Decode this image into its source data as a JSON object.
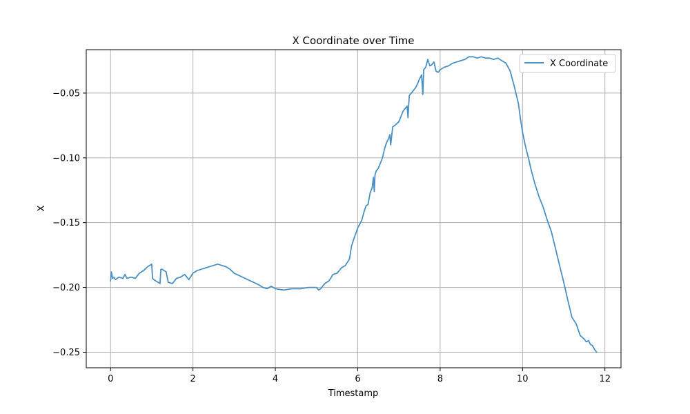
{
  "chart_data": {
    "type": "line",
    "title": "X Coordinate over Time",
    "xlabel": "Timestamp",
    "ylabel": "X",
    "xlim": [
      -0.59,
      12.39
    ],
    "ylim": [
      -0.262,
      -0.0165
    ],
    "xticks": [
      0,
      2,
      4,
      6,
      8,
      10,
      12
    ],
    "xtick_labels": [
      "0",
      "2",
      "4",
      "6",
      "8",
      "10",
      "12"
    ],
    "yticks": [
      -0.25,
      -0.2,
      -0.15,
      -0.1,
      -0.05
    ],
    "ytick_labels": [
      "−0.25",
      "−0.20",
      "−0.15",
      "−0.10",
      "−0.05"
    ],
    "grid": true,
    "legend_position": "top-right",
    "colors": {
      "series": "#4a90c2",
      "grid": "#b0b0b0",
      "axis": "#000000"
    },
    "series": [
      {
        "name": "X Coordinate",
        "x": [
          0.0,
          0.02,
          0.05,
          0.08,
          0.12,
          0.2,
          0.3,
          0.35,
          0.4,
          0.5,
          0.6,
          0.7,
          0.8,
          0.9,
          1.0,
          1.02,
          1.05,
          1.1,
          1.2,
          1.22,
          1.25,
          1.35,
          1.4,
          1.5,
          1.6,
          1.7,
          1.8,
          1.85,
          1.9,
          2.0,
          2.1,
          2.2,
          2.3,
          2.4,
          2.5,
          2.6,
          2.7,
          2.8,
          2.9,
          3.0,
          3.2,
          3.4,
          3.6,
          3.7,
          3.8,
          3.9,
          4.0,
          4.2,
          4.4,
          4.6,
          4.8,
          5.0,
          5.05,
          5.1,
          5.2,
          5.3,
          5.4,
          5.5,
          5.6,
          5.7,
          5.8,
          5.85,
          5.9,
          6.0,
          6.1,
          6.15,
          6.2,
          6.25,
          6.3,
          6.35,
          6.38,
          6.4,
          6.42,
          6.45,
          6.5,
          6.6,
          6.65,
          6.7,
          6.75,
          6.78,
          6.8,
          6.85,
          6.9,
          7.0,
          7.1,
          7.2,
          7.22,
          7.25,
          7.3,
          7.4,
          7.45,
          7.5,
          7.55,
          7.58,
          7.6,
          7.65,
          7.7,
          7.75,
          7.8,
          7.85,
          7.9,
          7.95,
          8.0,
          8.1,
          8.2,
          8.3,
          8.4,
          8.5,
          8.6,
          8.7,
          8.8,
          8.9,
          9.0,
          9.1,
          9.2,
          9.3,
          9.4,
          9.5,
          9.6,
          9.7,
          9.8,
          9.9,
          9.95,
          10.0,
          10.05,
          10.1,
          10.15,
          10.2,
          10.3,
          10.4,
          10.5,
          10.6,
          10.7,
          10.8,
          10.9,
          11.0,
          11.1,
          11.2,
          11.3,
          11.4,
          11.5,
          11.55,
          11.6,
          11.65,
          11.7,
          11.75,
          11.8
        ],
        "y": [
          -0.195,
          -0.188,
          -0.193,
          -0.192,
          -0.194,
          -0.192,
          -0.193,
          -0.19,
          -0.193,
          -0.192,
          -0.193,
          -0.189,
          -0.187,
          -0.184,
          -0.182,
          -0.193,
          -0.194,
          -0.195,
          -0.197,
          -0.186,
          -0.186,
          -0.188,
          -0.196,
          -0.197,
          -0.193,
          -0.192,
          -0.19,
          -0.192,
          -0.194,
          -0.189,
          -0.187,
          -0.186,
          -0.185,
          -0.184,
          -0.183,
          -0.182,
          -0.183,
          -0.184,
          -0.186,
          -0.189,
          -0.192,
          -0.195,
          -0.198,
          -0.2,
          -0.201,
          -0.199,
          -0.201,
          -0.202,
          -0.201,
          -0.201,
          -0.2,
          -0.2,
          -0.202,
          -0.201,
          -0.197,
          -0.195,
          -0.19,
          -0.189,
          -0.185,
          -0.183,
          -0.178,
          -0.168,
          -0.163,
          -0.154,
          -0.148,
          -0.142,
          -0.137,
          -0.136,
          -0.127,
          -0.123,
          -0.115,
          -0.126,
          -0.113,
          -0.11,
          -0.108,
          -0.1,
          -0.093,
          -0.088,
          -0.085,
          -0.082,
          -0.09,
          -0.076,
          -0.075,
          -0.072,
          -0.064,
          -0.06,
          -0.069,
          -0.052,
          -0.05,
          -0.046,
          -0.043,
          -0.039,
          -0.036,
          -0.051,
          -0.032,
          -0.03,
          -0.024,
          -0.029,
          -0.028,
          -0.026,
          -0.033,
          -0.034,
          -0.032,
          -0.03,
          -0.029,
          -0.027,
          -0.026,
          -0.025,
          -0.024,
          -0.022,
          -0.022,
          -0.023,
          -0.022,
          -0.023,
          -0.023,
          -0.024,
          -0.023,
          -0.025,
          -0.027,
          -0.033,
          -0.045,
          -0.058,
          -0.07,
          -0.08,
          -0.088,
          -0.095,
          -0.101,
          -0.108,
          -0.12,
          -0.13,
          -0.138,
          -0.148,
          -0.157,
          -0.17,
          -0.183,
          -0.196,
          -0.21,
          -0.223,
          -0.228,
          -0.237,
          -0.24,
          -0.242,
          -0.241,
          -0.244,
          -0.245,
          -0.248,
          -0.25
        ]
      }
    ]
  }
}
